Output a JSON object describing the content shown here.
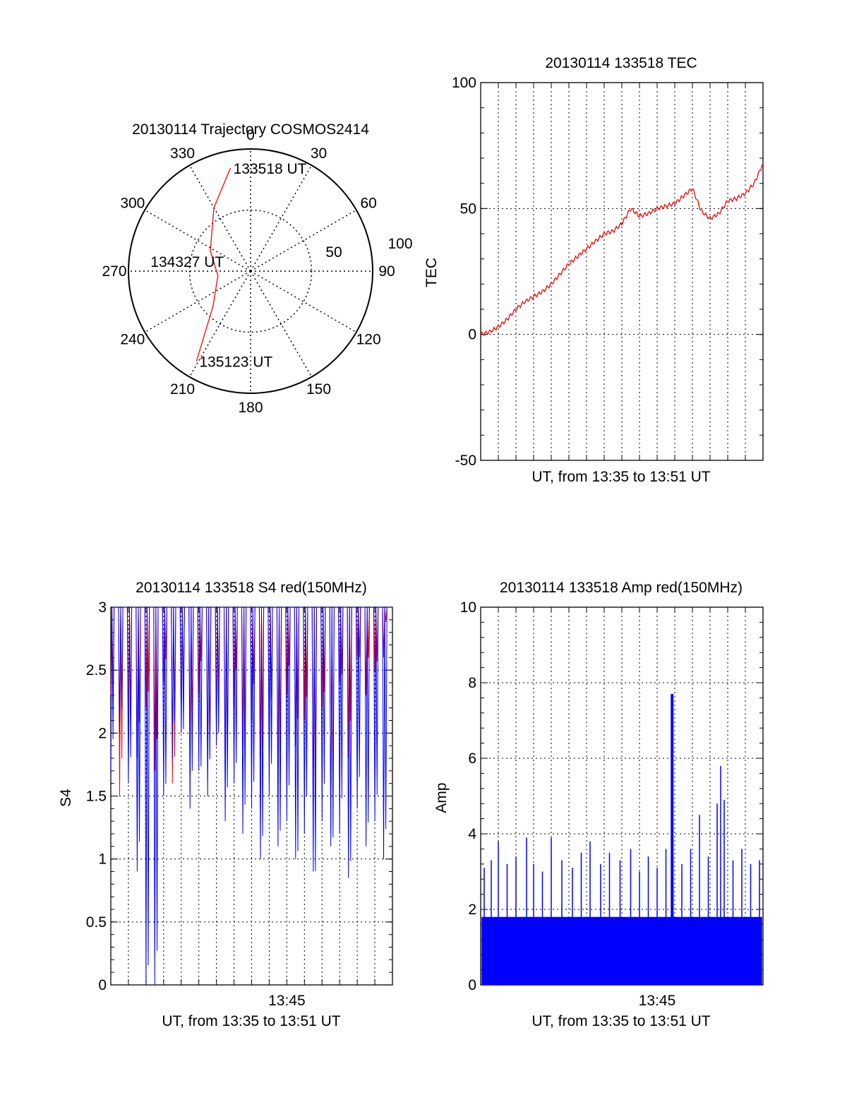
{
  "chart_data": [
    {
      "type": "polar",
      "title": "20130114 Trajectory COSMOS2414",
      "azimuth_labels": [
        "0",
        "30",
        "60",
        "90",
        "120",
        "150",
        "180",
        "210",
        "240",
        "270",
        "300",
        "330"
      ],
      "radius_labels": [
        "50",
        "100"
      ],
      "series": [
        {
          "color": "#ff0000",
          "points": [
            {
              "az": 349,
              "r": 86
            },
            {
              "az": 330,
              "r": 60
            },
            {
              "az": 297,
              "r": 37
            },
            {
              "az": 262,
              "r": 27
            },
            {
              "az": 227,
              "r": 42
            },
            {
              "az": 211,
              "r": 86
            }
          ]
        }
      ],
      "annotations": [
        {
          "text": "133518 UT",
          "az": 349,
          "r": 86
        },
        {
          "text": "134327 UT",
          "az": 270,
          "r": 27
        },
        {
          "text": "135123 UT",
          "az": 211,
          "r": 86
        }
      ]
    },
    {
      "type": "line",
      "title": "20130114 133518 TEC",
      "xlabel": "UT, from 13:35 to 13:51 UT",
      "ylabel": "TEC",
      "xlim": [
        0,
        16
      ],
      "ylim": [
        -50,
        100
      ],
      "yticks": [
        "-50",
        "0",
        "50",
        "100"
      ],
      "color": "#ff0000",
      "series": [
        {
          "x": [
            0,
            0.5,
            1,
            1.5,
            2,
            2.5,
            3,
            3.5,
            4,
            4.5,
            5,
            5.5,
            6,
            6.5,
            7,
            7.5,
            8,
            8.5,
            9,
            9.5,
            10,
            10.5,
            11,
            11.5,
            12,
            12.5,
            13,
            13.5,
            14,
            14.5,
            15,
            15.5,
            16
          ],
          "y": [
            0,
            1,
            3,
            6,
            10,
            13,
            15,
            17,
            20,
            24,
            28,
            31,
            34,
            37,
            40,
            41,
            44,
            50,
            47,
            48,
            50,
            51,
            52,
            55,
            58,
            49,
            46,
            48,
            53,
            54,
            56,
            60,
            68
          ]
        }
      ]
    },
    {
      "type": "line",
      "title": "20130114 133518 S4 red(150MHz)",
      "xlabel": "UT, from 13:35 to 13:51 UT",
      "ylabel": "S4",
      "xlim": [
        0,
        16
      ],
      "ylim": [
        0,
        3
      ],
      "xtick_labels": [
        {
          "x": 10,
          "label": "13:45"
        }
      ],
      "yticks": [
        "0",
        "0.5",
        "1",
        "1.5",
        "2",
        "2.5",
        "3"
      ],
      "series": [
        {
          "color": "#ff0000",
          "x": [
            0,
            0.25,
            0.5,
            0.75,
            1,
            1.25,
            1.5,
            1.75,
            2,
            2.25,
            2.5,
            2.75,
            3,
            3.25,
            3.5,
            3.75,
            4,
            4.25,
            4.5,
            4.75,
            5,
            5.25,
            5.5,
            5.75,
            6,
            6.25,
            6.5,
            6.75,
            7,
            7.25,
            7.5,
            7.75,
            8,
            8.25,
            8.5,
            8.75,
            9,
            9.25,
            9.5,
            9.75,
            10,
            10.25,
            10.5,
            10.75,
            11,
            11.25,
            11.5,
            11.75,
            12,
            12.25,
            12.5,
            12.75,
            13,
            13.25,
            13.5,
            13.75,
            14,
            14.25,
            14.5,
            14.75,
            15,
            15.25,
            15.5,
            15.75,
            16
          ],
          "y": [
            2.3,
            3,
            1.5,
            3,
            2.0,
            3,
            1.8,
            3,
            2.2,
            3,
            1.7,
            3,
            2.4,
            3,
            1.6,
            3,
            2.1,
            3,
            1.9,
            3,
            2.3,
            3,
            1.7,
            3,
            2.0,
            3,
            1.8,
            3,
            2.2,
            3,
            1.9,
            3,
            2.1,
            3,
            1.8,
            3,
            2.0,
            3,
            1.7,
            3,
            2.3,
            3,
            1.9,
            3,
            2.1,
            3,
            1.4,
            3,
            2.2,
            3,
            1.2,
            3,
            2.4,
            3,
            1.8,
            3,
            2.6,
            3,
            2.3,
            3,
            2.5,
            3,
            2.6,
            3,
            2.7
          ]
        },
        {
          "color": "#0000ff",
          "x": [
            0,
            0.25,
            0.5,
            0.75,
            1,
            1.25,
            1.5,
            1.75,
            2,
            2.25,
            2.5,
            2.75,
            3,
            3.25,
            3.5,
            3.75,
            4,
            4.25,
            4.5,
            4.75,
            5,
            5.25,
            5.5,
            5.75,
            6,
            6.25,
            6.5,
            6.75,
            7,
            7.25,
            7.5,
            7.75,
            8,
            8.25,
            8.5,
            8.75,
            9,
            9.25,
            9.5,
            9.75,
            10,
            10.25,
            10.5,
            10.75,
            11,
            11.25,
            11.5,
            11.75,
            12,
            12.25,
            12.5,
            12.75,
            13,
            13.25,
            13.5,
            13.75,
            14,
            14.25,
            14.5,
            14.75,
            15,
            15.25,
            15.5,
            15.75,
            16
          ],
          "y": [
            1.7,
            3,
            2.0,
            3,
            1.6,
            3,
            0.9,
            3,
            0,
            3,
            0,
            3,
            1.5,
            3,
            1.8,
            3,
            2.0,
            3,
            1.4,
            3,
            1.7,
            3,
            1.5,
            3,
            1.9,
            3,
            1.3,
            3,
            1.6,
            3,
            1.2,
            3,
            1.4,
            3,
            1.0,
            3,
            1.5,
            3,
            1.1,
            3,
            1.3,
            3,
            1.0,
            3,
            1.2,
            3,
            0.9,
            3,
            1.3,
            3,
            1.1,
            3,
            1.2,
            3,
            0.85,
            3,
            1.4,
            3,
            1.1,
            3,
            1.3,
            3,
            1.0,
            3,
            1.3
          ]
        }
      ]
    },
    {
      "type": "bar",
      "title": "20130114 133518 Amp red(150MHz)",
      "xlabel": "UT, from 13:35 to 13:51 UT",
      "ylabel": "Amp",
      "xlim": [
        0,
        16
      ],
      "ylim": [
        0,
        10
      ],
      "xtick_labels": [
        {
          "x": 10,
          "label": "13:45"
        }
      ],
      "yticks": [
        "0",
        "2",
        "4",
        "6",
        "8",
        "10"
      ],
      "color": "#0000ff",
      "baseline_level": 1.8,
      "x": [
        0.2,
        0.6,
        1.0,
        1.5,
        2.0,
        2.6,
        3.0,
        3.5,
        4.0,
        4.6,
        5.2,
        5.7,
        6.2,
        6.8,
        7.3,
        7.9,
        8.5,
        9.0,
        9.5,
        10.0,
        10.5,
        10.85,
        10.9,
        11.4,
        11.9,
        12.4,
        12.9,
        13.4,
        13.6,
        13.8,
        14.3,
        14.8,
        15.3,
        15.8
      ],
      "values": [
        3.1,
        3.3,
        3.8,
        3.2,
        3.4,
        3.9,
        3.2,
        3.0,
        3.9,
        3.3,
        3.1,
        3.5,
        3.8,
        3.2,
        3.5,
        3.3,
        3.6,
        3.0,
        3.4,
        3.1,
        3.6,
        7.7,
        3.4,
        3.2,
        3.6,
        4.5,
        3.4,
        4.8,
        5.8,
        4.9,
        3.3,
        3.6,
        3.2,
        3.3
      ]
    }
  ]
}
